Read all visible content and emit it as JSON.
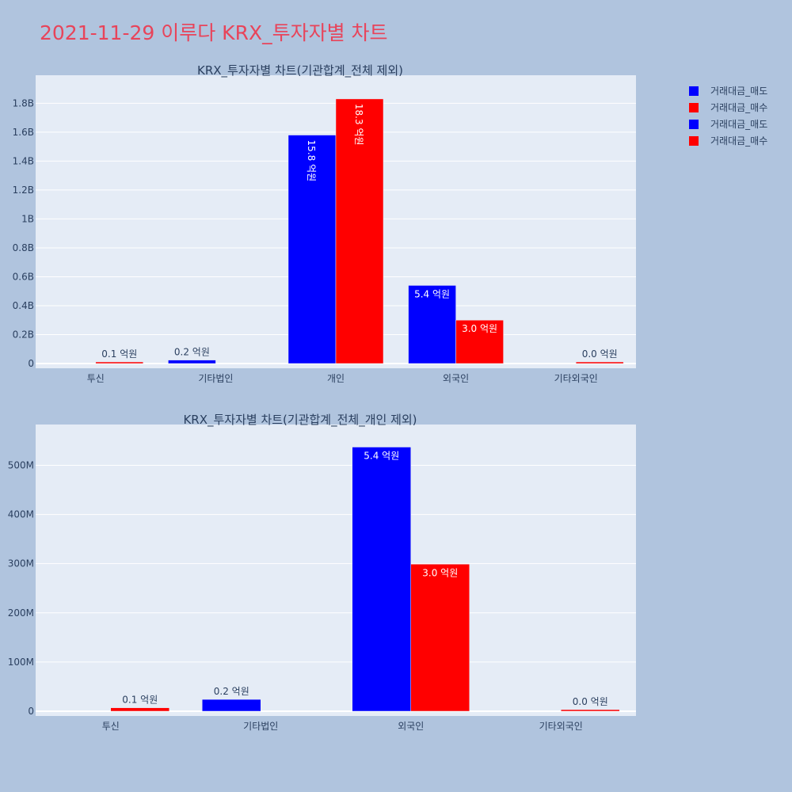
{
  "title": "2021-11-29 이루다 KRX_투자자별 차트",
  "legend": [
    {
      "label": "거래대금_매도",
      "color": "#0000ff"
    },
    {
      "label": "거래대금_매수",
      "color": "#ff0000"
    },
    {
      "label": "거래대금_매도",
      "color": "#0000ff"
    },
    {
      "label": "거래대금_매수",
      "color": "#ff0000"
    }
  ],
  "chart_data": [
    {
      "type": "bar",
      "title": "KRX_투자자별 차트(기관합계_전체 제외)",
      "categories": [
        "투신",
        "기타법인",
        "개인",
        "외국인",
        "기타외국인"
      ],
      "series": [
        {
          "name": "거래대금_매도",
          "color": "#0000ff",
          "values": [
            0,
            24000000,
            1580000000,
            540000000,
            0
          ],
          "labels": [
            "",
            "0.2 억원",
            "15.8 억원",
            "5.4 억원",
            ""
          ]
        },
        {
          "name": "거래대금_매수",
          "color": "#ff0000",
          "values": [
            8000000,
            0,
            1830000000,
            300000000,
            1000000
          ],
          "labels": [
            "0.1 억원",
            "",
            "18.3 억원",
            "3.0 억원",
            "0.0 억원"
          ]
        }
      ],
      "ylim": [
        0,
        1950000000
      ],
      "yticks": [
        0,
        200000000,
        400000000,
        600000000,
        800000000,
        1000000000,
        1200000000,
        1400000000,
        1600000000,
        1800000000
      ],
      "yticklabels": [
        "0",
        "0.2B",
        "0.4B",
        "0.6B",
        "0.8B",
        "1B",
        "1.2B",
        "1.4B",
        "1.6B",
        "1.8B"
      ],
      "grid": true
    },
    {
      "type": "bar",
      "title": "KRX_투자자별 차트(기관합계_전체_개인 제외)",
      "categories": [
        "투신",
        "기타법인",
        "외국인",
        "기타외국인"
      ],
      "series": [
        {
          "name": "거래대금_매도",
          "color": "#0000ff",
          "values": [
            0,
            24000000,
            537000000,
            0
          ],
          "labels": [
            "",
            "0.2 억원",
            "5.4 억원",
            ""
          ]
        },
        {
          "name": "거래대금_매수",
          "color": "#ff0000",
          "values": [
            7000000,
            0,
            299000000,
            1000000
          ],
          "labels": [
            "0.1 억원",
            "",
            "3.0 억원",
            "0.0 억원"
          ]
        }
      ],
      "ylim": [
        0,
        570000000
      ],
      "yticks": [
        0,
        100000000,
        200000000,
        300000000,
        400000000,
        500000000
      ],
      "yticklabels": [
        "0",
        "100M",
        "200M",
        "300M",
        "400M",
        "500M"
      ],
      "grid": true
    }
  ]
}
